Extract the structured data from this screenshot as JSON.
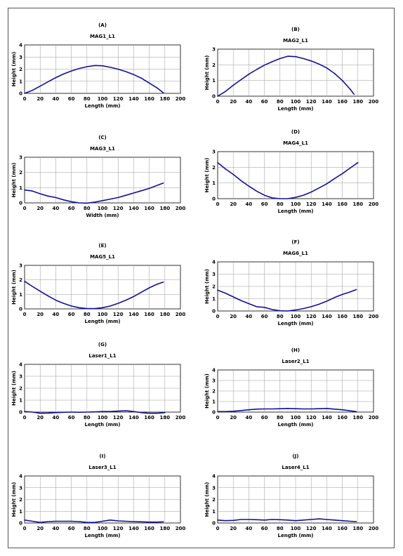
{
  "chart_data": [
    {
      "id": "A",
      "letter": "(A)",
      "type": "line",
      "title": "MAG1_L1",
      "xlabel": "Length (mm)",
      "ylabel": "Height (mm)",
      "xlim": [
        0,
        200
      ],
      "ylim": [
        0,
        4
      ],
      "xticks": [
        0,
        20,
        40,
        60,
        80,
        100,
        120,
        140,
        160,
        180,
        200
      ],
      "yticks": [
        0,
        1,
        2,
        3,
        4
      ],
      "grid": true,
      "series": [
        {
          "color": "#10109a",
          "x": [
            0,
            10,
            20,
            30,
            40,
            50,
            60,
            70,
            80,
            90,
            100,
            110,
            120,
            130,
            140,
            150,
            160,
            170,
            178
          ],
          "y": [
            0,
            0.25,
            0.6,
            0.95,
            1.3,
            1.6,
            1.85,
            2.05,
            2.2,
            2.3,
            2.28,
            2.15,
            2.0,
            1.8,
            1.55,
            1.25,
            0.85,
            0.45,
            0.05
          ]
        }
      ]
    },
    {
      "id": "B",
      "letter": "(B)",
      "type": "line",
      "title": "MAG2_L1",
      "xlabel": "Length (mm)",
      "ylabel": "Height (mm)",
      "xlim": [
        0,
        200
      ],
      "ylim": [
        0,
        3
      ],
      "xticks": [
        0,
        20,
        40,
        60,
        80,
        100,
        120,
        140,
        160,
        180,
        200
      ],
      "yticks": [
        0,
        1,
        2,
        3
      ],
      "grid": true,
      "series": [
        {
          "color": "#10109a",
          "x": [
            0,
            10,
            20,
            30,
            40,
            50,
            60,
            70,
            80,
            90,
            100,
            110,
            120,
            130,
            140,
            150,
            160,
            170,
            175
          ],
          "y": [
            0,
            0.3,
            0.7,
            1.05,
            1.4,
            1.7,
            1.98,
            2.2,
            2.4,
            2.55,
            2.52,
            2.4,
            2.25,
            2.05,
            1.8,
            1.45,
            1.0,
            0.45,
            0.12
          ]
        }
      ]
    },
    {
      "id": "C",
      "letter": "(C)",
      "type": "line",
      "title": "MAG3_L1",
      "xlabel": "Width (mm)",
      "ylabel": "Height (mm)",
      "xlim": [
        0,
        200
      ],
      "ylim": [
        0,
        3
      ],
      "xticks": [
        0,
        20,
        40,
        60,
        80,
        100,
        120,
        140,
        160,
        180,
        200
      ],
      "yticks": [
        0,
        1,
        2,
        3
      ],
      "grid": true,
      "series": [
        {
          "color": "#10109a",
          "x": [
            0,
            10,
            20,
            30,
            40,
            50,
            60,
            70,
            80,
            90,
            100,
            110,
            120,
            130,
            140,
            150,
            160,
            170,
            178
          ],
          "y": [
            0.85,
            0.78,
            0.6,
            0.45,
            0.35,
            0.2,
            0.08,
            0.0,
            -0.02,
            0.05,
            0.15,
            0.25,
            0.35,
            0.5,
            0.65,
            0.8,
            0.95,
            1.15,
            1.3
          ]
        }
      ]
    },
    {
      "id": "D",
      "letter": "(D)",
      "type": "line",
      "title": "MAG4_L1",
      "xlabel": "Length (mm)",
      "ylabel": "Height (mm)",
      "xlim": [
        0,
        200
      ],
      "ylim": [
        0,
        3
      ],
      "xticks": [
        0,
        20,
        40,
        60,
        80,
        100,
        120,
        140,
        160,
        180,
        200
      ],
      "yticks": [
        0,
        1,
        2,
        3
      ],
      "grid": true,
      "series": [
        {
          "color": "#10109a",
          "x": [
            0,
            10,
            20,
            30,
            40,
            50,
            60,
            70,
            80,
            90,
            100,
            110,
            120,
            130,
            140,
            150,
            160,
            170,
            180
          ],
          "y": [
            2.3,
            1.9,
            1.55,
            1.15,
            0.8,
            0.48,
            0.22,
            0.05,
            0.0,
            0.0,
            0.08,
            0.22,
            0.42,
            0.68,
            0.95,
            1.28,
            1.6,
            1.95,
            2.3
          ]
        }
      ]
    },
    {
      "id": "E",
      "letter": "(E)",
      "type": "line",
      "title": "MAG5_L1",
      "xlabel": "Length (mm)",
      "ylabel": "Height (mm)",
      "xlim": [
        0,
        200
      ],
      "ylim": [
        0,
        3
      ],
      "xticks": [
        0,
        20,
        40,
        60,
        80,
        100,
        120,
        140,
        160,
        180,
        200
      ],
      "yticks": [
        0,
        1,
        2,
        3
      ],
      "grid": true,
      "series": [
        {
          "color": "#10109a",
          "x": [
            0,
            10,
            20,
            30,
            40,
            50,
            60,
            70,
            80,
            90,
            100,
            110,
            120,
            130,
            140,
            150,
            160,
            170,
            178
          ],
          "y": [
            1.9,
            1.55,
            1.22,
            0.9,
            0.6,
            0.38,
            0.2,
            0.08,
            0.02,
            0.02,
            0.08,
            0.2,
            0.38,
            0.6,
            0.85,
            1.15,
            1.45,
            1.7,
            1.85
          ]
        }
      ]
    },
    {
      "id": "F",
      "letter": "(F)",
      "type": "line",
      "title": "MAG6_L1",
      "xlabel": "Length (mm)",
      "ylabel": "Height (mm)",
      "xlim": [
        0,
        200
      ],
      "ylim": [
        0,
        4
      ],
      "xticks": [
        0,
        20,
        40,
        60,
        80,
        100,
        120,
        140,
        160,
        180,
        200
      ],
      "yticks": [
        0,
        1,
        2,
        3,
        4
      ],
      "grid": true,
      "series": [
        {
          "color": "#10109a",
          "x": [
            0,
            10,
            20,
            30,
            40,
            50,
            60,
            70,
            80,
            90,
            100,
            110,
            120,
            130,
            140,
            150,
            160,
            170,
            178
          ],
          "y": [
            1.7,
            1.45,
            1.15,
            0.85,
            0.6,
            0.35,
            0.3,
            0.12,
            0.02,
            0.0,
            0.08,
            0.2,
            0.35,
            0.55,
            0.8,
            1.1,
            1.35,
            1.55,
            1.75
          ]
        }
      ]
    },
    {
      "id": "G",
      "letter": "(G)",
      "type": "line",
      "title": "Laser1_L1",
      "xlabel": "Length (mm)",
      "ylabel": "Height (mm)",
      "xlim": [
        0,
        200
      ],
      "ylim": [
        0,
        4
      ],
      "xticks": [
        0,
        20,
        40,
        60,
        80,
        100,
        120,
        140,
        160,
        180,
        200
      ],
      "yticks": [
        0,
        1,
        2,
        3,
        4
      ],
      "grid": true,
      "series": [
        {
          "color": "#10109a",
          "x": [
            0,
            10,
            20,
            30,
            40,
            50,
            60,
            70,
            80,
            90,
            100,
            110,
            120,
            130,
            140,
            150,
            160,
            170,
            180
          ],
          "y": [
            0.05,
            0.0,
            -0.1,
            -0.08,
            -0.05,
            -0.02,
            0.0,
            -0.02,
            0.0,
            0.02,
            0.05,
            0.05,
            0.08,
            0.12,
            0.05,
            -0.05,
            -0.1,
            -0.1,
            -0.05
          ]
        }
      ]
    },
    {
      "id": "H",
      "letter": "(H)",
      "type": "line",
      "title": "Laser2_L1",
      "xlabel": "Length (mm)",
      "ylabel": "Height (mm)",
      "xlim": [
        0,
        200
      ],
      "ylim": [
        0,
        4
      ],
      "xticks": [
        0,
        20,
        40,
        60,
        80,
        100,
        120,
        140,
        160,
        180,
        200
      ],
      "yticks": [
        0,
        1,
        2,
        3,
        4
      ],
      "grid": true,
      "series": [
        {
          "color": "#10109a",
          "x": [
            0,
            10,
            20,
            30,
            40,
            50,
            60,
            70,
            80,
            90,
            100,
            110,
            120,
            130,
            140,
            150,
            160,
            170,
            178
          ],
          "y": [
            0.05,
            0.05,
            0.08,
            0.15,
            0.22,
            0.28,
            0.3,
            0.3,
            0.32,
            0.35,
            0.32,
            0.3,
            0.3,
            0.32,
            0.35,
            0.28,
            0.22,
            0.12,
            0.05
          ]
        }
      ]
    },
    {
      "id": "I",
      "letter": "(I)",
      "type": "line",
      "title": "Laser3_L1",
      "xlabel": "Length (mm)",
      "ylabel": "Height (mm)",
      "xlim": [
        0,
        200
      ],
      "ylim": [
        0,
        4
      ],
      "xticks": [
        0,
        20,
        40,
        60,
        80,
        100,
        120,
        140,
        160,
        180,
        200
      ],
      "yticks": [
        0,
        1,
        2,
        3,
        4
      ],
      "grid": true,
      "series": [
        {
          "color": "#10109a",
          "x": [
            0,
            10,
            20,
            30,
            40,
            50,
            60,
            70,
            80,
            90,
            100,
            110,
            120,
            130,
            140,
            150,
            160,
            170,
            178
          ],
          "y": [
            0.25,
            0.15,
            0.05,
            0.12,
            0.15,
            0.15,
            0.15,
            0.12,
            0.05,
            0.05,
            0.15,
            0.25,
            0.18,
            0.15,
            0.12,
            0.1,
            0.08,
            0.08,
            0.1
          ]
        }
      ]
    },
    {
      "id": "J",
      "letter": "(J)",
      "type": "line",
      "title": "Laser4_L1",
      "xlabel": "Length (mm)",
      "ylabel": "Height (mm)",
      "xlim": [
        0,
        200
      ],
      "ylim": [
        0,
        4
      ],
      "xticks": [
        0,
        20,
        40,
        60,
        80,
        100,
        120,
        140,
        160,
        180,
        200
      ],
      "yticks": [
        0,
        1,
        2,
        3,
        4
      ],
      "grid": true,
      "series": [
        {
          "color": "#10109a",
          "x": [
            0,
            10,
            20,
            30,
            40,
            50,
            60,
            70,
            80,
            90,
            100,
            110,
            120,
            130,
            140,
            150,
            160,
            170,
            178
          ],
          "y": [
            0.25,
            0.2,
            0.22,
            0.3,
            0.3,
            0.28,
            0.25,
            0.3,
            0.28,
            0.25,
            0.2,
            0.25,
            0.3,
            0.35,
            0.3,
            0.25,
            0.2,
            0.15,
            0.12
          ]
        }
      ]
    }
  ]
}
